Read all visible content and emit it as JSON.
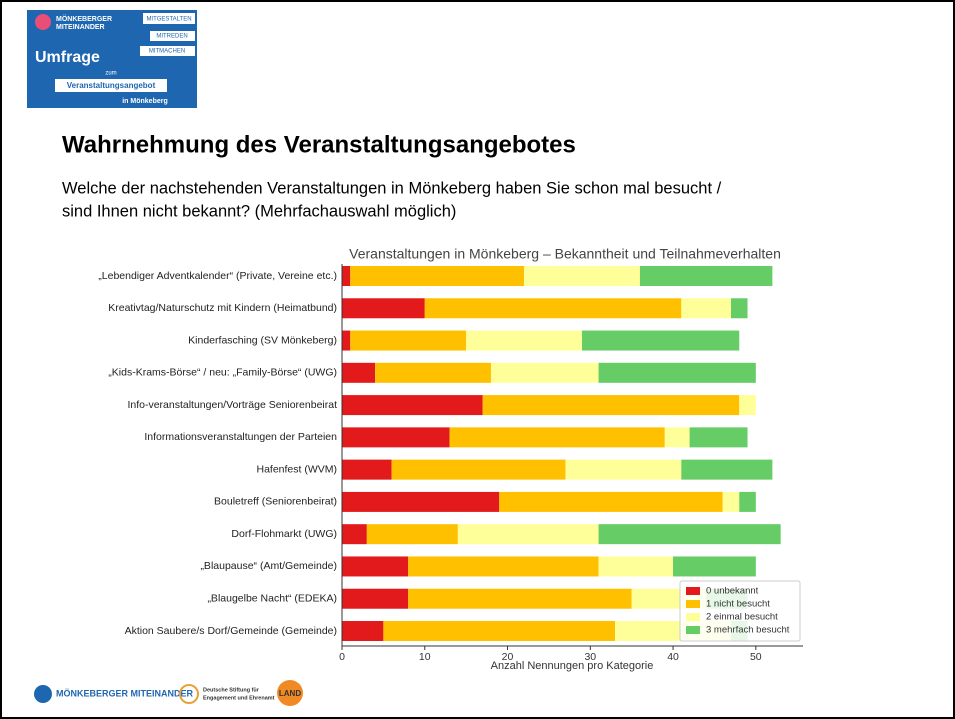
{
  "logo": {
    "brand": [
      "MÖNKEBERGER",
      "MITEINANDER"
    ],
    "tags": [
      "MITGESTALTEN",
      "MITREDEN",
      "MITMACHEN"
    ],
    "title": "Umfrage",
    "sub": "zum",
    "banner": "Veranstaltungsangebot",
    "place": "in Mönkeberg"
  },
  "heading": "Wahrnehmung des Veranstaltungsangebotes",
  "question": [
    "Welche der nachstehenden Veranstaltungen in Mönkeberg haben Sie schon mal besucht /",
    "sind Ihnen nicht bekannt? (Mehrfachauswahl möglich)"
  ],
  "chart_data": {
    "type": "barh_stacked",
    "title": "Veranstaltungen in Mönkeberg – Bekanntheit und Teilnahmeverhalten",
    "xlabel": "Anzahl Nennungen pro Kategorie",
    "categories": [
      "„Lebendiger Adventkalender“ (Private, Vereine etc.)",
      "Kreativtag/Naturschutz mit Kindern (Heimatbund)",
      "Kinderfasching (SV Mönkeberg)",
      "„Kids-Krams-Börse“ / neu: „Family-Börse“ (UWG)",
      "Info-veranstaltungen/Vorträge Seniorenbeirat",
      "Informationsveranstaltungen der Parteien",
      "Hafenfest (WVM)",
      "Bouletreff (Seniorenbeirat)",
      "Dorf-Flohmarkt (UWG)",
      "„Blaupause“ (Amt/Gemeinde)",
      "„Blaugelbe Nacht“ (EDEKA)",
      "Aktion Saubere/s Dorf/Gemeinde (Gemeinde)"
    ],
    "series": [
      {
        "name": "0 unbekannt",
        "color": "#e31a1c",
        "values": [
          1,
          10,
          1,
          4,
          17,
          13,
          6,
          19,
          3,
          8,
          8,
          5
        ]
      },
      {
        "name": "1 nicht besucht",
        "color": "#ffc000",
        "values": [
          21,
          31,
          14,
          14,
          31,
          26,
          21,
          27,
          11,
          23,
          27,
          28
        ]
      },
      {
        "name": "2 einmal besucht",
        "color": "#ffff99",
        "values": [
          14,
          6,
          14,
          13,
          2,
          3,
          14,
          2,
          17,
          9,
          9,
          14
        ]
      },
      {
        "name": "3 mehrfach besucht",
        "color": "#66cc66",
        "values": [
          16,
          2,
          19,
          19,
          0,
          7,
          11,
          2,
          22,
          10,
          5,
          2
        ]
      }
    ],
    "xlim": [
      0,
      55.7
    ],
    "xticks": [
      0,
      10,
      20,
      30,
      40,
      50
    ],
    "legend": "lower right"
  },
  "footer": {
    "brand": "MÖNKEBERGER MITEINANDER",
    "foundation": [
      "Deutsche Stiftung für",
      "Engagement und Ehrenamt"
    ],
    "land": "LAND"
  }
}
